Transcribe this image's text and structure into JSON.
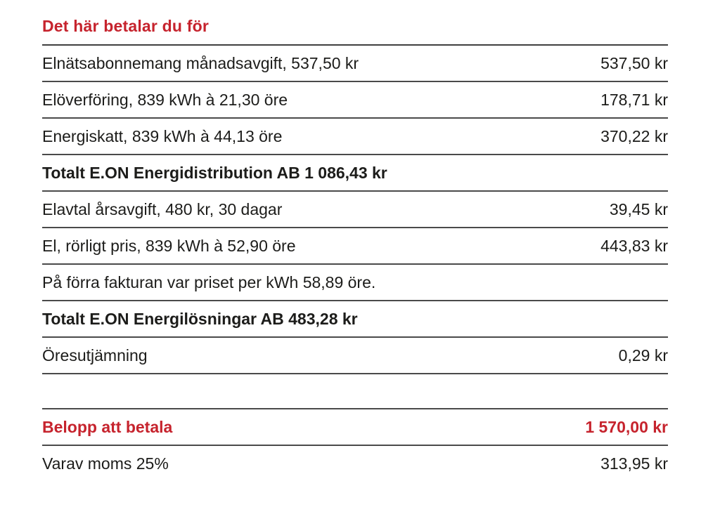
{
  "section": {
    "title": "Det här betalar du för"
  },
  "table": {
    "rows": [
      {
        "type": "item",
        "label": "Elnätsabonnemang månadsavgift, 537,50 kr",
        "amount": "537,50 kr"
      },
      {
        "type": "item",
        "label": "Elöverföring, 839 kWh à 21,30 öre",
        "amount": "178,71 kr"
      },
      {
        "type": "item",
        "label": "Energiskatt, 839 kWh à 44,13 öre",
        "amount": "370,22 kr"
      },
      {
        "type": "subtotal",
        "label": "Totalt E.ON Energidistribution AB 1 086,43 kr",
        "amount": ""
      },
      {
        "type": "item",
        "label": "Elavtal årsavgift, 480 kr, 30 dagar",
        "amount": "39,45 kr"
      },
      {
        "type": "item",
        "label": "El, rörligt pris, 839 kWh à 52,90 öre",
        "amount": "443,83 kr"
      },
      {
        "type": "note",
        "label": "På förra fakturan var priset per kWh 58,89 öre.",
        "amount": ""
      },
      {
        "type": "subtotal",
        "label": "Totalt E.ON Energilösningar AB 483,28 kr",
        "amount": ""
      },
      {
        "type": "item",
        "label": "Öresutjämning",
        "amount": "0,29 kr"
      }
    ]
  },
  "summary": {
    "total": {
      "label": "Belopp att betala",
      "amount": "1 570,00 kr"
    },
    "vat": {
      "label": "Varav moms 25%",
      "amount": "313,95 kr"
    }
  },
  "colors": {
    "accent_red": "#c6232d",
    "text": "#1c1c1a",
    "divider": "#4a4a4a"
  }
}
